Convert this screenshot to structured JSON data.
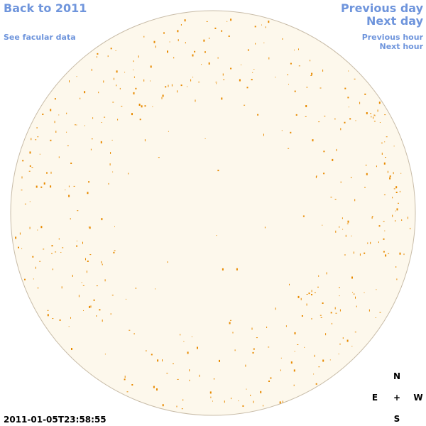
{
  "links": {
    "back": "Back to 2011",
    "facular": "See facular data",
    "previous_day": "Previous day",
    "next_day": "Next day",
    "previous_hour": "Previous hour",
    "next_hour": "Next hour"
  },
  "timestamp": "2011-01-05T23:58:55",
  "compass": {
    "north": "N",
    "east": "E",
    "center": "+",
    "west": "W",
    "south": "S"
  }
}
